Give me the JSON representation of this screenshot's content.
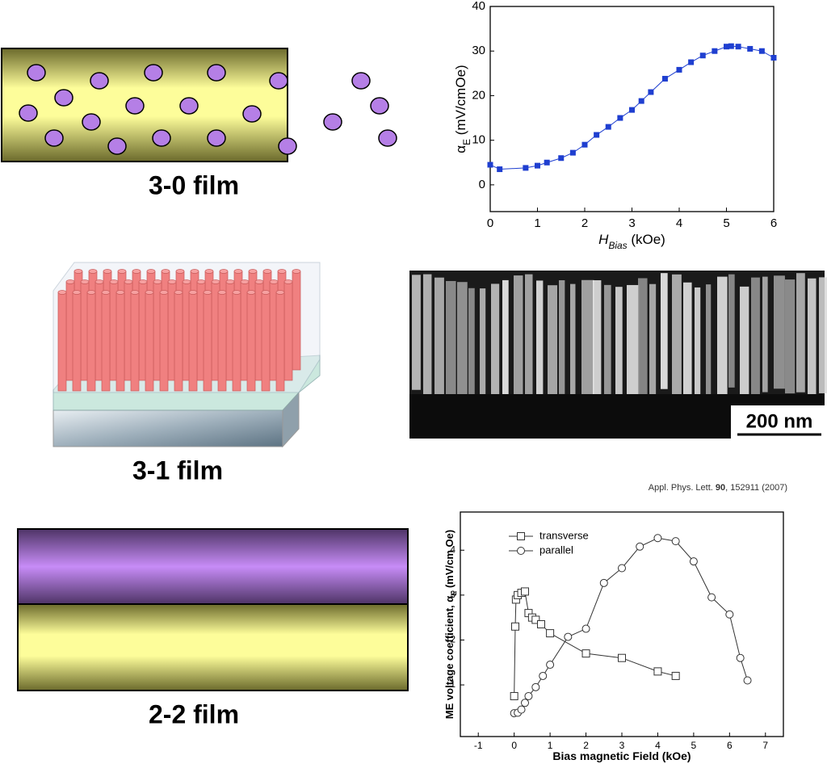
{
  "chart_data": [
    {
      "type": "line",
      "xlabel": {
        "main": "H",
        "sub": "Bias",
        "unit": " (kOe)"
      },
      "ylabel": {
        "main": "α",
        "sub": "E",
        "unit": " (mV/cmOe)"
      },
      "xlim": [
        0,
        6
      ],
      "xticks": [
        0,
        1,
        2,
        3,
        4,
        5,
        6
      ],
      "ylim": [
        -6,
        40
      ],
      "yticks": [
        0,
        10,
        20,
        30,
        40
      ],
      "series": [
        {
          "color": "#1f3fd0",
          "marker": "filled-square",
          "x": [
            0,
            0.2,
            0.75,
            1.0,
            1.2,
            1.5,
            1.75,
            2.0,
            2.25,
            2.5,
            2.75,
            3.0,
            3.2,
            3.4,
            3.7,
            4.0,
            4.25,
            4.5,
            4.75,
            5.0,
            5.1,
            5.25,
            5.5,
            5.75,
            6.0
          ],
          "values": [
            4.5,
            3.5,
            3.8,
            4.3,
            5,
            6,
            7.2,
            9,
            11.2,
            13,
            15,
            16.8,
            18.8,
            20.8,
            23.8,
            25.8,
            27.5,
            29,
            30,
            31,
            31.1,
            31,
            30.5,
            30,
            28.5
          ]
        }
      ]
    },
    {
      "type": "line",
      "xlabel": {
        "main": "Bias magnetic Field (kOe)"
      },
      "ylabel": {
        "main": "ME voltage coefficient, α",
        "sub": "E",
        "unit": " (mV/cm Oe)"
      },
      "xlim": [
        -1.5,
        7.5
      ],
      "xticks": [
        -1,
        0,
        1,
        2,
        3,
        4,
        5,
        6,
        7
      ],
      "ylim": [
        -0.15,
        4.85
      ],
      "yticks": [
        1,
        2,
        3,
        4
      ],
      "legend": "top-left",
      "series": [
        {
          "name": "transverse",
          "color": "#333333",
          "marker": "open-square",
          "x": [
            0,
            0.03,
            0.05,
            0.1,
            0.2,
            0.3,
            0.4,
            0.5,
            0.6,
            0.75,
            1,
            2,
            3,
            4,
            4.5
          ],
          "values": [
            0.75,
            2.3,
            2.9,
            3.0,
            3.05,
            3.08,
            2.6,
            2.5,
            2.45,
            2.35,
            2.15,
            1.7,
            1.6,
            1.3,
            1.2
          ]
        },
        {
          "name": "parallel",
          "color": "#333333",
          "marker": "open-circle",
          "x": [
            0,
            0.1,
            0.2,
            0.3,
            0.4,
            0.6,
            0.8,
            1,
            1.5,
            2,
            2.5,
            3,
            3.5,
            4,
            4.5,
            5,
            5.5,
            6,
            6.3,
            6.5
          ],
          "values": [
            0.37,
            0.38,
            0.45,
            0.6,
            0.75,
            0.95,
            1.2,
            1.45,
            2.07,
            2.25,
            3.27,
            3.6,
            4.08,
            4.27,
            4.2,
            3.75,
            2.95,
            2.57,
            1.6,
            1.1
          ]
        }
      ]
    }
  ],
  "labels": {
    "film_30": "3-0 film",
    "film_31": "3-1 film",
    "film_22": "2-2 film",
    "scale_bar": "200 nm",
    "citation": {
      "journal": "Appl. Phys. Lett. ",
      "volume": "90",
      "rest": ", 152911 (2007)"
    }
  }
}
